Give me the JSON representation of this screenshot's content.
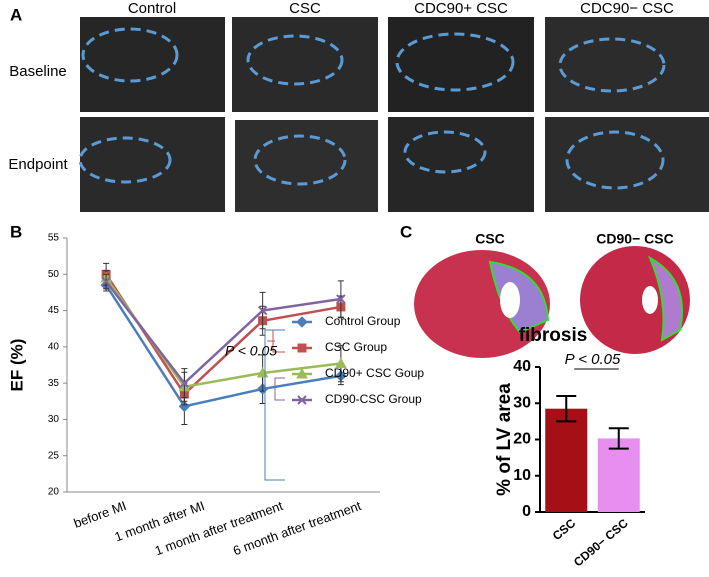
{
  "panel_a": {
    "label": "A",
    "columns": [
      "Control",
      "CSC",
      "CDC90+ CSC",
      "CDC90− CSC"
    ],
    "rows": [
      "Baseline",
      "Endpoint"
    ]
  },
  "panel_c": {
    "label": "C",
    "images": [
      "CSC",
      "CD90− CSC"
    ]
  },
  "chart_data": [
    {
      "type": "line",
      "panel": "B",
      "y_label": "EF (%)",
      "categories": [
        "before MI",
        "1 month after MI",
        "1 month after treatment",
        "6 month after treatment"
      ],
      "ylim": [
        20,
        55
      ],
      "yticks": [
        20,
        25,
        30,
        35,
        40,
        45,
        50,
        55
      ],
      "annotation": "P < 0.05",
      "series": [
        {
          "name": "Control Group",
          "color": "#4a7ebb",
          "marker": "diamond",
          "values": [
            48.5,
            31.8,
            34.2,
            36.0
          ],
          "errors": [
            0.8,
            2.5,
            2.0,
            1.2
          ]
        },
        {
          "name": "CSC Group",
          "color": "#c0504d",
          "marker": "square",
          "values": [
            50.0,
            33.5,
            43.6,
            45.5
          ],
          "errors": [
            1.5,
            1.5,
            2.0,
            1.5
          ]
        },
        {
          "name": "CD90+ CSC Goup",
          "color": "#9bbb59",
          "marker": "triangle",
          "values": [
            49.5,
            34.5,
            36.4,
            37.7
          ],
          "errors": [
            1.0,
            2.0,
            2.5,
            2.5
          ]
        },
        {
          "name": "CD90-CSC Group",
          "color": "#8064a2",
          "marker": "x",
          "values": [
            49.0,
            35.0,
            45.0,
            46.6
          ],
          "errors": [
            1.0,
            2.0,
            2.5,
            2.5
          ]
        }
      ]
    },
    {
      "type": "bar",
      "title": "fibrosis",
      "y_label": "% of LV area",
      "categories": [
        "CSC",
        "CD90− CSC"
      ],
      "values": [
        28.5,
        20.3
      ],
      "errors": [
        3.5,
        2.8
      ],
      "colors": [
        "#a50f15",
        "#e88ef0"
      ],
      "ylim": [
        0,
        40
      ],
      "yticks": [
        0,
        10,
        20,
        30,
        40
      ],
      "annotation": "P < 0.05"
    }
  ]
}
